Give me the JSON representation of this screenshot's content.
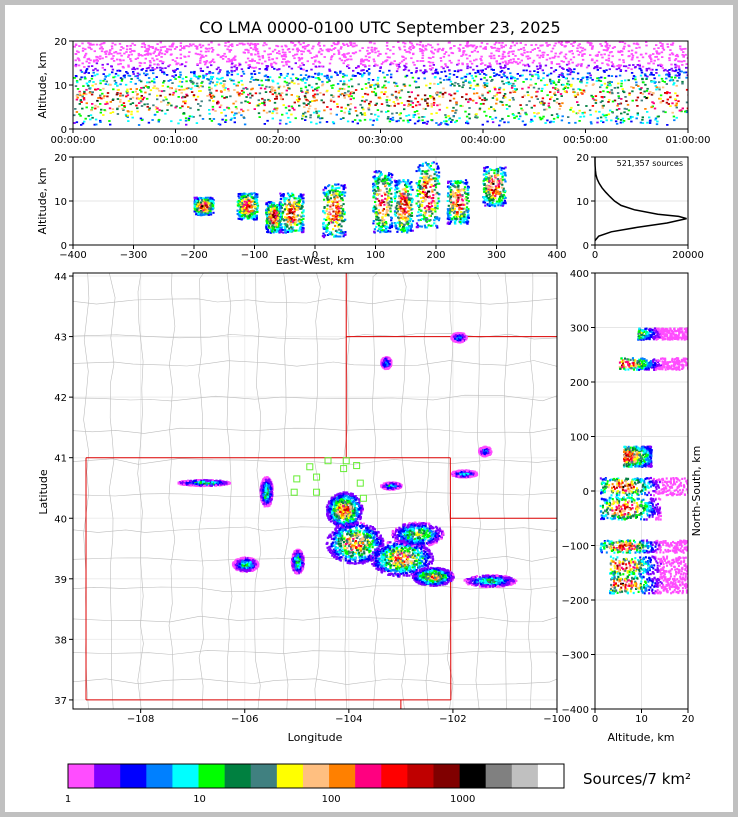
{
  "title": "CO LMA 0000-0100 UTC September 23, 2025",
  "chart_data": [
    {
      "id": "time-height",
      "type": "heatmap",
      "ylabel": "Altitude, km",
      "ylim": [
        0,
        20
      ],
      "yticks": [
        "0",
        "10",
        "20"
      ],
      "xticks": [
        "00:00:00",
        "00:10:00",
        "00:20:00",
        "00:30:00",
        "00:40:00",
        "00:50:00",
        "01:00:00"
      ]
    },
    {
      "id": "ew-height",
      "type": "heatmap",
      "xlabel": "East-West, km",
      "ylabel": "Altitude, km",
      "xlim": [
        -400,
        400
      ],
      "ylim": [
        0,
        20
      ],
      "xticks": [
        "−400",
        "−300",
        "−200",
        "−100",
        "0",
        "100",
        "200",
        "300",
        "400"
      ],
      "yticks": [
        "0",
        "10",
        "20"
      ],
      "clusters": [
        {
          "x": -185,
          "zmin": 7,
          "zmax": 11
        },
        {
          "x": -113,
          "zmin": 6,
          "zmax": 12
        },
        {
          "x": -70,
          "zmin": 3,
          "zmax": 10
        },
        {
          "x": -40,
          "zmin": 3,
          "zmax": 12
        },
        {
          "x": 30,
          "zmin": 2,
          "zmax": 14
        },
        {
          "x": 110,
          "zmin": 3,
          "zmax": 17
        },
        {
          "x": 145,
          "zmin": 3,
          "zmax": 15
        },
        {
          "x": 185,
          "zmin": 4,
          "zmax": 19
        },
        {
          "x": 235,
          "zmin": 5,
          "zmax": 15
        },
        {
          "x": 295,
          "zmin": 9,
          "zmax": 18
        }
      ]
    },
    {
      "id": "altitude-histogram",
      "type": "line",
      "annotation": "521,357 sources",
      "xlim": [
        0,
        20000
      ],
      "ylim": [
        0,
        20
      ],
      "xticks": [
        "0",
        "20000"
      ],
      "yticks": [
        "0",
        "10",
        "20"
      ],
      "profile": [
        {
          "z": 1,
          "count": 0
        },
        {
          "z": 2,
          "count": 800
        },
        {
          "z": 3,
          "count": 3500
        },
        {
          "z": 4,
          "count": 9000
        },
        {
          "z": 5,
          "count": 15500
        },
        {
          "z": 6,
          "count": 19700
        },
        {
          "z": 6.5,
          "count": 18000
        },
        {
          "z": 7,
          "count": 13500
        },
        {
          "z": 8,
          "count": 8500
        },
        {
          "z": 9,
          "count": 5600
        },
        {
          "z": 10,
          "count": 4200
        },
        {
          "z": 11,
          "count": 3200
        },
        {
          "z": 12,
          "count": 2300
        },
        {
          "z": 13,
          "count": 1500
        },
        {
          "z": 14,
          "count": 900
        },
        {
          "z": 15,
          "count": 450
        },
        {
          "z": 16,
          "count": 200
        },
        {
          "z": 17,
          "count": 80
        },
        {
          "z": 18,
          "count": 30
        },
        {
          "z": 19,
          "count": 10
        },
        {
          "z": 20,
          "count": 0
        }
      ]
    },
    {
      "id": "plan-view",
      "type": "heatmap",
      "xlabel": "Longitude",
      "ylabel": "Latitude",
      "xlim": [
        -109.3,
        -100.0
      ],
      "ylim": [
        36.85,
        44.05
      ],
      "xticks": [
        "−108",
        "−106",
        "−104",
        "−102",
        "−100"
      ],
      "yticks": [
        "37",
        "38",
        "39",
        "40",
        "41",
        "42",
        "43",
        "44"
      ],
      "stations": [
        {
          "lon": -104.4,
          "lat": 40.95
        },
        {
          "lon": -104.05,
          "lat": 40.95
        },
        {
          "lon": -103.85,
          "lat": 40.87
        },
        {
          "lon": -104.75,
          "lat": 40.85
        },
        {
          "lon": -104.1,
          "lat": 40.82
        },
        {
          "lon": -104.62,
          "lat": 40.68
        },
        {
          "lon": -105.0,
          "lat": 40.65
        },
        {
          "lon": -103.78,
          "lat": 40.58
        },
        {
          "lon": -105.05,
          "lat": 40.43
        },
        {
          "lon": -104.62,
          "lat": 40.43
        },
        {
          "lon": -103.72,
          "lat": 40.33
        }
      ],
      "storms": [
        {
          "lon": -106.8,
          "lat": 40.6,
          "rx": 0.5,
          "ry": 0.05,
          "peak": 0.5
        },
        {
          "lon": -105.6,
          "lat": 40.45,
          "rx": 0.12,
          "ry": 0.25,
          "peak": 0.55
        },
        {
          "lon": -104.1,
          "lat": 40.15,
          "rx": 0.35,
          "ry": 0.3,
          "peak": 0.95
        },
        {
          "lon": -103.9,
          "lat": 39.6,
          "rx": 0.55,
          "ry": 0.35,
          "peak": 0.9
        },
        {
          "lon": -103.0,
          "lat": 39.35,
          "rx": 0.6,
          "ry": 0.3,
          "peak": 0.9
        },
        {
          "lon": -102.4,
          "lat": 39.05,
          "rx": 0.4,
          "ry": 0.15,
          "peak": 0.85
        },
        {
          "lon": -102.7,
          "lat": 39.75,
          "rx": 0.5,
          "ry": 0.2,
          "peak": 0.6
        },
        {
          "lon": -101.3,
          "lat": 38.98,
          "rx": 0.5,
          "ry": 0.1,
          "peak": 0.5
        },
        {
          "lon": -106.0,
          "lat": 39.25,
          "rx": 0.25,
          "ry": 0.12,
          "peak": 0.45
        },
        {
          "lon": -105.0,
          "lat": 39.3,
          "rx": 0.12,
          "ry": 0.2,
          "peak": 0.5
        },
        {
          "lon": -103.2,
          "lat": 40.55,
          "rx": 0.2,
          "ry": 0.06,
          "peak": 0.4
        },
        {
          "lon": -101.8,
          "lat": 40.75,
          "rx": 0.25,
          "ry": 0.06,
          "peak": 0.4
        },
        {
          "lon": -103.3,
          "lat": 42.58,
          "rx": 0.1,
          "ry": 0.1,
          "peak": 0.35
        },
        {
          "lon": -101.9,
          "lat": 43.0,
          "rx": 0.15,
          "ry": 0.08,
          "peak": 0.3
        },
        {
          "lon": -101.4,
          "lat": 41.12,
          "rx": 0.12,
          "ry": 0.08,
          "peak": 0.3
        }
      ]
    },
    {
      "id": "ns-height",
      "type": "heatmap",
      "xlabel": "Altitude, km",
      "ylabel": "North-South, km",
      "xlim": [
        0,
        20
      ],
      "ylim": [
        -400,
        400
      ],
      "xticks": [
        "0",
        "10",
        "20"
      ],
      "yticks": [
        "−400",
        "−300",
        "−200",
        "−100",
        "0",
        "100",
        "200",
        "300",
        "400"
      ],
      "clusters": [
        {
          "y": 290,
          "zmin": 9,
          "zmax": 20
        },
        {
          "y": 235,
          "zmin": 5,
          "zmax": 20
        },
        {
          "y": 65,
          "zmin": 6,
          "zmax": 12
        },
        {
          "y": 10,
          "zmin": 1,
          "zmax": 20
        },
        {
          "y": -30,
          "zmin": 1,
          "zmax": 14
        },
        {
          "y": -100,
          "zmin": 1,
          "zmax": 20
        },
        {
          "y": -135,
          "zmin": 3,
          "zmax": 20
        },
        {
          "y": -170,
          "zmin": 3,
          "zmax": 20
        }
      ]
    }
  ],
  "colorbar": {
    "label": "Sources/7 km²",
    "ticks": [
      "1",
      "10",
      "100",
      "1000"
    ],
    "colors": [
      "#ff4dff",
      "#8000ff",
      "#0000ff",
      "#0080ff",
      "#00ffff",
      "#00ff00",
      "#008040",
      "#408080",
      "#ffff00",
      "#ffbf80",
      "#ff8000",
      "#ff0080",
      "#ff0000",
      "#bf0000",
      "#800000",
      "#000000",
      "#808080",
      "#c0c0c0",
      "#ffffff"
    ]
  }
}
